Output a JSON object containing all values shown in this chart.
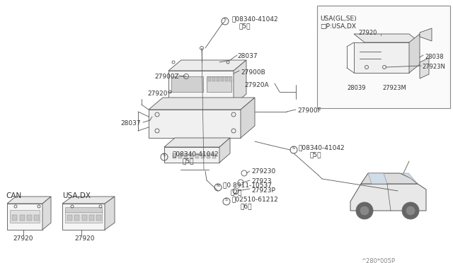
{
  "bg_color": "#ffffff",
  "fig_width": 6.4,
  "fig_height": 3.72,
  "dpi": 100,
  "line_color": "#555555",
  "text_color": "#333333",
  "labels": {
    "s1": "Ⓝ08340-41042",
    "s1_sub": "（5）",
    "s2": "Ⓝ08340-41042",
    "s2_sub": "（5）",
    "s3": "Ⓝ08340-41042",
    "s3_sub": "（5）",
    "s4": "Ⓝ02510-61212",
    "s4_sub": "（6）",
    "n1": "Ⓞ0 8911-10537",
    "n1_sub": "（2）",
    "part_28037a": "28037",
    "part_28037b": "28037",
    "part_27900z": "27900Z",
    "part_27900b": "27900B",
    "part_27920a_lbl": "27920A",
    "part_27900f": "27900F",
    "part_27920": "27920",
    "part_279230": "279230",
    "part_27923": "27923",
    "part_27923p": "27923P",
    "inset_title1": "USA(GL,SE)",
    "inset_title2": "□P:USA,DX",
    "inset_27920": "27920",
    "inset_28038": "28038",
    "inset_27923n": "27923N",
    "inset_28039": "28039",
    "inset_27923m": "27923M",
    "can_label": "CAN",
    "can_part": "27920",
    "usadx_label": "USA,DX",
    "usadx_part": "27920",
    "diagram_code": "^280*005P"
  }
}
